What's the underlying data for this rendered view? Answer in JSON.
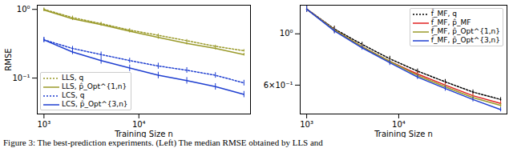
{
  "chart_data": [
    {
      "type": "line",
      "log": true,
      "grid": false,
      "legend": "lower left",
      "x_label": "Training Size n",
      "y_label": "RMSE",
      "x": [
        1000,
        2000,
        4000,
        8000,
        16000,
        32000,
        64000,
        128000
      ],
      "xlim": [
        850,
        150000
      ],
      "xticks": [
        {
          "value": 1000,
          "label": "10³"
        },
        {
          "value": 10000,
          "label": "10⁴"
        }
      ],
      "ylim": [
        0.03,
        1.15
      ],
      "yticks": [
        {
          "value": 0.1,
          "label": "10⁻¹"
        },
        {
          "value": 1,
          "label": "10⁰"
        }
      ],
      "series": [
        {
          "name": "LLS, q",
          "color": "#9a9a2a",
          "line_style": "dotted",
          "values": [
            1.0,
            0.76,
            0.62,
            0.5,
            0.42,
            0.35,
            0.29,
            0.25
          ],
          "errors": [
            0.05,
            0.04,
            0.03,
            0.025,
            0.02,
            0.015,
            0.012,
            0.01
          ]
        },
        {
          "name": "LLS, p̂_Opt^{1,n}",
          "color": "#9a9a2a",
          "line_style": "solid",
          "values": [
            0.98,
            0.73,
            0.6,
            0.48,
            0.39,
            0.32,
            0.27,
            0.22
          ],
          "errors": [
            0.05,
            0.04,
            0.03,
            0.025,
            0.02,
            0.015,
            0.012,
            0.01
          ]
        },
        {
          "name": "LCS, q",
          "color": "#1f3fd0",
          "line_style": "dotted",
          "values": [
            0.36,
            0.27,
            0.22,
            0.18,
            0.15,
            0.13,
            0.11,
            0.085
          ],
          "errors": [
            0.03,
            0.02,
            0.02,
            0.015,
            0.015,
            0.012,
            0.01,
            0.008
          ]
        },
        {
          "name": "LCS, p̂_Opt^{3,n}",
          "color": "#1f3fd0",
          "line_style": "solid",
          "values": [
            0.36,
            0.24,
            0.18,
            0.14,
            0.11,
            0.092,
            0.075,
            0.058
          ],
          "errors": [
            0.03,
            0.02,
            0.02,
            0.015,
            0.012,
            0.01,
            0.008,
            0.006
          ]
        }
      ]
    },
    {
      "type": "line",
      "log": true,
      "grid": false,
      "legend": "upper right",
      "x_label": "Training Size n",
      "x": [
        1000,
        2000,
        4000,
        8000,
        16000,
        32000,
        64000,
        128000
      ],
      "xlim": [
        850,
        150000
      ],
      "xticks": [
        {
          "value": 1000,
          "label": "10³"
        },
        {
          "value": 10000,
          "label": "10⁴"
        }
      ],
      "ylim": [
        0.45,
        1.33
      ],
      "yticks": [
        {
          "value": 0.6,
          "label": "6×10⁻¹"
        },
        {
          "value": 1,
          "label": "10⁰"
        }
      ],
      "series": [
        {
          "name": "f̂_MF, q",
          "color": "#000000",
          "line_style": "dotted",
          "values": [
            1.28,
            1.05,
            0.9,
            0.78,
            0.69,
            0.62,
            0.56,
            0.52
          ],
          "errors": [
            0.04,
            0.03,
            0.02,
            0.02,
            0.015,
            0.015,
            0.012,
            0.01
          ]
        },
        {
          "name": "f̂_MF, p̂_MF",
          "color": "#e02020",
          "line_style": "solid",
          "values": [
            1.28,
            1.04,
            0.88,
            0.76,
            0.67,
            0.6,
            0.54,
            0.5
          ],
          "errors": [
            0.04,
            0.03,
            0.02,
            0.02,
            0.015,
            0.015,
            0.012,
            0.01
          ]
        },
        {
          "name": "f̂_MF, p̂_Opt^{1,n}",
          "color": "#9a9a2a",
          "line_style": "solid",
          "values": [
            1.28,
            1.04,
            0.88,
            0.76,
            0.66,
            0.59,
            0.53,
            0.49
          ],
          "errors": [
            0.04,
            0.03,
            0.02,
            0.02,
            0.015,
            0.015,
            0.012,
            0.01
          ]
        },
        {
          "name": "f̂_MF, p̂_Opt^{3,n}",
          "color": "#1f3fd0",
          "line_style": "solid",
          "values": [
            1.28,
            1.03,
            0.87,
            0.75,
            0.65,
            0.58,
            0.52,
            0.47
          ],
          "errors": [
            0.04,
            0.03,
            0.02,
            0.02,
            0.015,
            0.015,
            0.012,
            0.01
          ]
        }
      ]
    }
  ],
  "caption": "Figure 3: The best-prediction experiments. (Left) The median RMSE obtained by LLS and"
}
